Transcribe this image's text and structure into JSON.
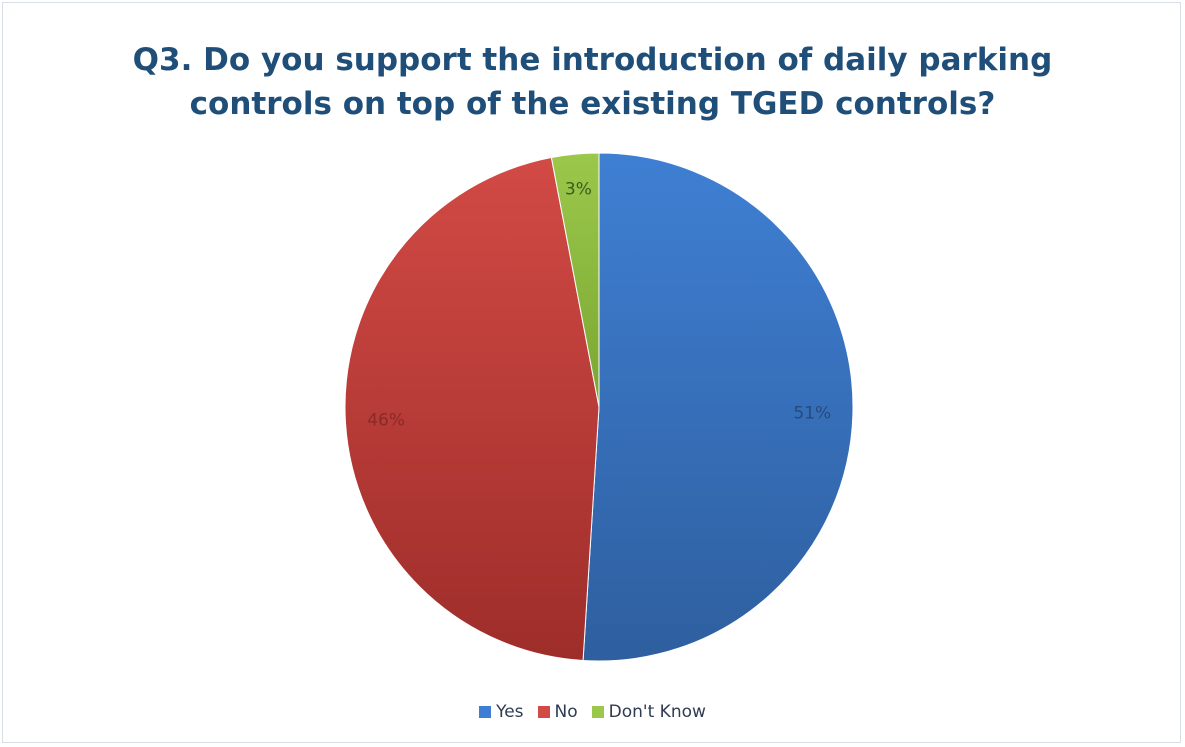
{
  "chart_data": {
    "type": "pie",
    "title_lines": [
      "Q3. Do you support the introduction of daily parking",
      "controls on top of the existing TGED controls?"
    ],
    "slices": [
      {
        "name": "Yes",
        "value": 51,
        "label": "51%",
        "color": "#3f7fd3",
        "color_dark": "#2e5f9f",
        "label_color": "#264a7a"
      },
      {
        "name": "No",
        "value": 46,
        "label": "46%",
        "color": "#d24a45",
        "color_dark": "#9e2d2a",
        "label_color": "#8a2a26"
      },
      {
        "name": "Don't Know",
        "value": 3,
        "label": "3%",
        "color": "#9bc84b",
        "color_dark": "#7aa632",
        "label_color": "#3d5a1a"
      }
    ],
    "legend_position": "bottom",
    "start_angle_deg": 0,
    "direction": "clockwise"
  }
}
